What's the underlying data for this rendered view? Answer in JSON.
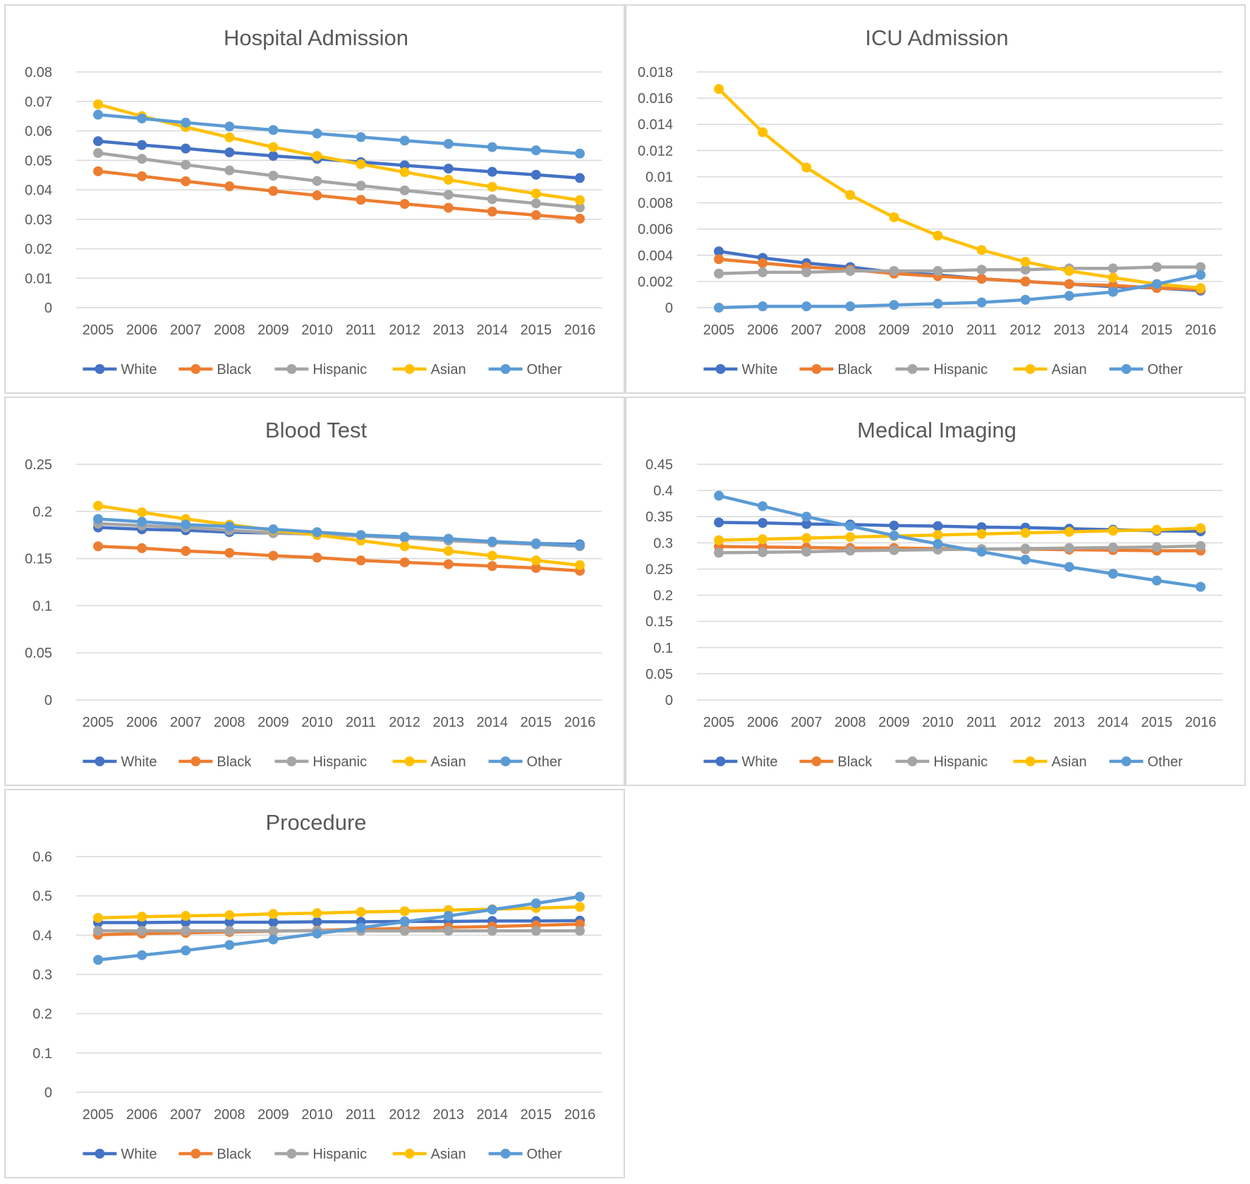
{
  "categories": [
    "2005",
    "2006",
    "2007",
    "2008",
    "2009",
    "2010",
    "2011",
    "2012",
    "2013",
    "2014",
    "2015",
    "2016"
  ],
  "series_colors": {
    "White": "#4472c4",
    "Black": "#ed7d31",
    "Hispanic": "#a5a5a5",
    "Asian": "#ffc000",
    "Other": "#5b9bd5"
  },
  "chart_data": [
    {
      "type": "line",
      "title": "Hospital Admission",
      "categories": [
        "2005",
        "2006",
        "2007",
        "2008",
        "2009",
        "2010",
        "2011",
        "2012",
        "2013",
        "2014",
        "2015",
        "2016"
      ],
      "ylim": [
        0,
        0.08
      ],
      "yticks": [
        0,
        0.01,
        0.02,
        0.03,
        0.04,
        0.05,
        0.06,
        0.07,
        0.08
      ],
      "ytick_labels": [
        "0",
        "0.01",
        "0.02",
        "0.03",
        "0.04",
        "0.05",
        "0.06",
        "0.07",
        "0.08"
      ],
      "grid": true,
      "legend": "bottom",
      "series": [
        {
          "name": "White",
          "values": [
            0.0565,
            0.0552,
            0.054,
            0.0527,
            0.0515,
            0.0505,
            0.0494,
            0.0483,
            0.0472,
            0.0461,
            0.0451,
            0.044
          ]
        },
        {
          "name": "Black",
          "values": [
            0.0463,
            0.0446,
            0.0429,
            0.0412,
            0.0396,
            0.0381,
            0.0366,
            0.0352,
            0.0339,
            0.0326,
            0.0314,
            0.0302
          ]
        },
        {
          "name": "Hispanic",
          "values": [
            0.0525,
            0.0505,
            0.0485,
            0.0466,
            0.0448,
            0.043,
            0.0414,
            0.0398,
            0.0383,
            0.0368,
            0.0354,
            0.034
          ]
        },
        {
          "name": "Asian",
          "values": [
            0.069,
            0.065,
            0.0613,
            0.0578,
            0.0545,
            0.0515,
            0.0487,
            0.046,
            0.0434,
            0.041,
            0.0387,
            0.0365
          ]
        },
        {
          "name": "Other",
          "values": [
            0.0655,
            0.0642,
            0.0628,
            0.0615,
            0.0603,
            0.0591,
            0.0579,
            0.0567,
            0.0556,
            0.0545,
            0.0534,
            0.0523
          ]
        }
      ]
    },
    {
      "type": "line",
      "title": "ICU Admission",
      "categories": [
        "2005",
        "2006",
        "2007",
        "2008",
        "2009",
        "2010",
        "2011",
        "2012",
        "2013",
        "2014",
        "2015",
        "2016"
      ],
      "ylim": [
        0,
        0.018
      ],
      "yticks": [
        0,
        0.002,
        0.004,
        0.006,
        0.008,
        0.01,
        0.012,
        0.014,
        0.016,
        0.018
      ],
      "ytick_labels": [
        "0",
        "0.002",
        "0.004",
        "0.006",
        "0.008",
        "0.01",
        "0.012",
        "0.014",
        "0.016",
        "0.018"
      ],
      "grid": true,
      "legend": "bottom",
      "series": [
        {
          "name": "White",
          "values": [
            0.0043,
            0.0038,
            0.0034,
            0.0031,
            0.0027,
            0.0025,
            0.0022,
            0.002,
            0.0018,
            0.0016,
            0.0015,
            0.0013
          ]
        },
        {
          "name": "Black",
          "values": [
            0.0037,
            0.0034,
            0.0031,
            0.0029,
            0.0026,
            0.0024,
            0.0022,
            0.002,
            0.0018,
            0.0017,
            0.0015,
            0.0014
          ]
        },
        {
          "name": "Hispanic",
          "values": [
            0.0026,
            0.0027,
            0.0027,
            0.0028,
            0.0028,
            0.0028,
            0.0029,
            0.0029,
            0.003,
            0.003,
            0.0031,
            0.0031
          ]
        },
        {
          "name": "Asian",
          "values": [
            0.0167,
            0.0134,
            0.0107,
            0.0086,
            0.0069,
            0.0055,
            0.0044,
            0.0035,
            0.0028,
            0.0023,
            0.0018,
            0.0015
          ]
        },
        {
          "name": "Other",
          "values": [
            0.0,
            0.0001,
            0.0001,
            0.0001,
            0.0002,
            0.0003,
            0.0004,
            0.0006,
            0.0009,
            0.0012,
            0.0018,
            0.0025
          ]
        }
      ]
    },
    {
      "type": "line",
      "title": "Blood Test",
      "categories": [
        "2005",
        "2006",
        "2007",
        "2008",
        "2009",
        "2010",
        "2011",
        "2012",
        "2013",
        "2014",
        "2015",
        "2016"
      ],
      "ylim": [
        0,
        0.25
      ],
      "yticks": [
        0,
        0.05,
        0.1,
        0.15,
        0.2,
        0.25
      ],
      "ytick_labels": [
        "0",
        "0.05",
        "0.1",
        "0.15",
        "0.2",
        "0.25"
      ],
      "grid": true,
      "legend": "bottom",
      "series": [
        {
          "name": "White",
          "values": [
            0.183,
            0.181,
            0.18,
            0.178,
            0.177,
            0.176,
            0.174,
            0.172,
            0.17,
            0.168,
            0.166,
            0.165
          ]
        },
        {
          "name": "Black",
          "values": [
            0.163,
            0.161,
            0.158,
            0.156,
            0.153,
            0.151,
            0.148,
            0.146,
            0.144,
            0.142,
            0.14,
            0.137
          ]
        },
        {
          "name": "Hispanic",
          "values": [
            0.187,
            0.185,
            0.183,
            0.18,
            0.177,
            0.176,
            0.174,
            0.172,
            0.169,
            0.167,
            0.165,
            0.163
          ]
        },
        {
          "name": "Asian",
          "values": [
            0.206,
            0.199,
            0.192,
            0.186,
            0.18,
            0.175,
            0.169,
            0.163,
            0.158,
            0.153,
            0.148,
            0.143
          ]
        },
        {
          "name": "Other",
          "values": [
            0.192,
            0.189,
            0.186,
            0.184,
            0.181,
            0.178,
            0.175,
            0.173,
            0.171,
            0.168,
            0.166,
            0.164
          ]
        }
      ]
    },
    {
      "type": "line",
      "title": "Medical Imaging",
      "categories": [
        "2005",
        "2006",
        "2007",
        "2008",
        "2009",
        "2010",
        "2011",
        "2012",
        "2013",
        "2014",
        "2015",
        "2016"
      ],
      "ylim": [
        0,
        0.45
      ],
      "yticks": [
        0,
        0.05,
        0.1,
        0.15,
        0.2,
        0.25,
        0.3,
        0.35,
        0.4,
        0.45
      ],
      "ytick_labels": [
        "0",
        "0.05",
        "0.1",
        "0.15",
        "0.2",
        "0.25",
        "0.3",
        "0.35",
        "0.4",
        "0.45"
      ],
      "grid": true,
      "legend": "bottom",
      "series": [
        {
          "name": "White",
          "values": [
            0.339,
            0.338,
            0.336,
            0.335,
            0.333,
            0.332,
            0.33,
            0.329,
            0.327,
            0.325,
            0.323,
            0.322
          ]
        },
        {
          "name": "Black",
          "values": [
            0.293,
            0.292,
            0.291,
            0.29,
            0.29,
            0.289,
            0.288,
            0.288,
            0.287,
            0.286,
            0.285,
            0.285
          ]
        },
        {
          "name": "Hispanic",
          "values": [
            0.281,
            0.282,
            0.283,
            0.285,
            0.286,
            0.287,
            0.288,
            0.289,
            0.29,
            0.291,
            0.292,
            0.294
          ]
        },
        {
          "name": "Asian",
          "values": [
            0.305,
            0.307,
            0.309,
            0.311,
            0.313,
            0.315,
            0.317,
            0.319,
            0.321,
            0.323,
            0.325,
            0.328
          ]
        },
        {
          "name": "Other",
          "values": [
            0.39,
            0.37,
            0.35,
            0.332,
            0.314,
            0.298,
            0.283,
            0.268,
            0.254,
            0.241,
            0.228,
            0.216
          ]
        }
      ]
    },
    {
      "type": "line",
      "title": "Procedure",
      "categories": [
        "2005",
        "2006",
        "2007",
        "2008",
        "2009",
        "2010",
        "2011",
        "2012",
        "2013",
        "2014",
        "2015",
        "2016"
      ],
      "ylim": [
        0,
        0.6
      ],
      "yticks": [
        0,
        0.1,
        0.2,
        0.3,
        0.4,
        0.5,
        0.6
      ],
      "ytick_labels": [
        "0",
        "0.1",
        "0.2",
        "0.3",
        "0.4",
        "0.5",
        "0.6"
      ],
      "grid": true,
      "legend": "bottom",
      "series": [
        {
          "name": "White",
          "values": [
            0.432,
            0.432,
            0.433,
            0.433,
            0.433,
            0.434,
            0.434,
            0.435,
            0.435,
            0.436,
            0.436,
            0.437
          ]
        },
        {
          "name": "Black",
          "values": [
            0.401,
            0.404,
            0.406,
            0.408,
            0.41,
            0.412,
            0.415,
            0.417,
            0.42,
            0.422,
            0.425,
            0.428
          ]
        },
        {
          "name": "Hispanic",
          "values": [
            0.411,
            0.411,
            0.411,
            0.411,
            0.411,
            0.411,
            0.411,
            0.411,
            0.411,
            0.411,
            0.411,
            0.411
          ]
        },
        {
          "name": "Asian",
          "values": [
            0.444,
            0.447,
            0.449,
            0.451,
            0.454,
            0.456,
            0.459,
            0.461,
            0.464,
            0.466,
            0.469,
            0.472
          ]
        },
        {
          "name": "Other",
          "values": [
            0.337,
            0.349,
            0.361,
            0.375,
            0.389,
            0.404,
            0.419,
            0.434,
            0.449,
            0.465,
            0.481,
            0.498
          ]
        }
      ]
    }
  ]
}
